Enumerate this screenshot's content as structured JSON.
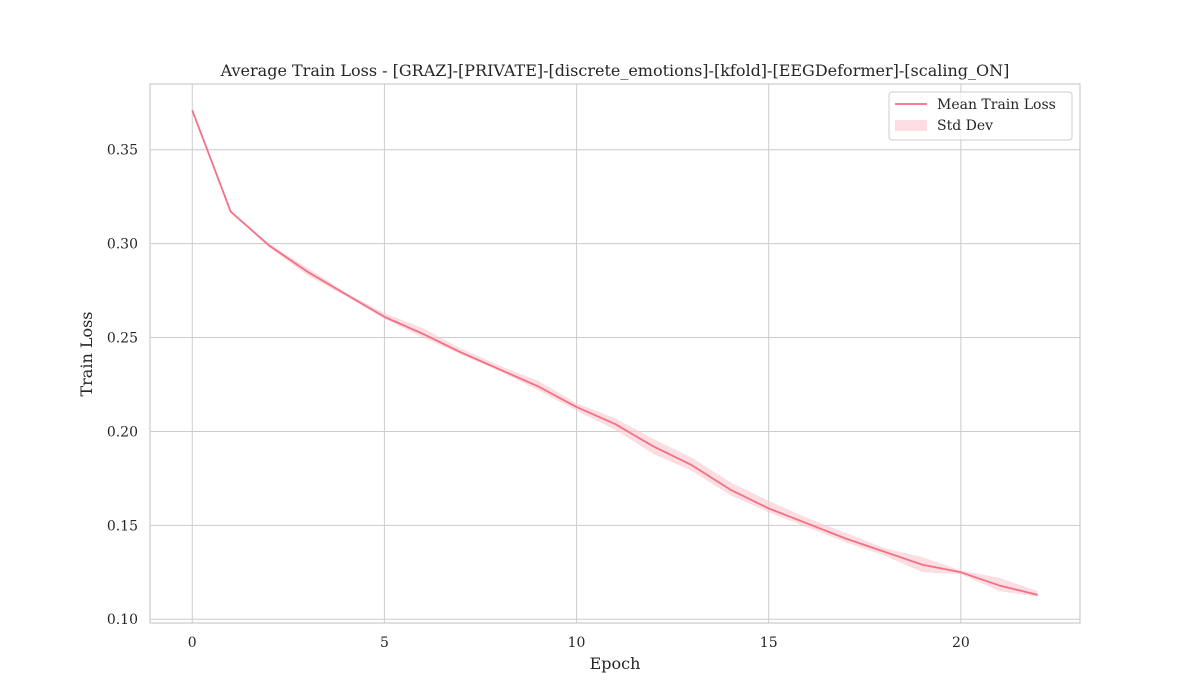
{
  "chart_data": {
    "type": "line",
    "title": "Average Train Loss - [GRAZ]-[PRIVATE]-[discrete_emotions]-[kfold]-[EEGDeformer]-[scaling_ON]",
    "xlabel": "Epoch",
    "ylabel": "Train Loss",
    "xlim": [
      -1.1,
      23.1
    ],
    "ylim": [
      0.098,
      0.385
    ],
    "xticks": [
      0,
      5,
      10,
      15,
      20
    ],
    "yticks": [
      0.1,
      0.15,
      0.2,
      0.25,
      0.3,
      0.35
    ],
    "xtick_labels": [
      "0",
      "5",
      "10",
      "15",
      "20"
    ],
    "ytick_labels": [
      "0.10",
      "0.15",
      "0.20",
      "0.25",
      "0.30",
      "0.35"
    ],
    "grid": true,
    "legend_position": "top-right",
    "line_color": "#f37185",
    "band_color": "#f9c7cf",
    "series": [
      {
        "name": "Mean Train Loss",
        "x": [
          0,
          1,
          2,
          3,
          4,
          5,
          6,
          7,
          8,
          9,
          10,
          11,
          12,
          13,
          14,
          15,
          16,
          17,
          18,
          19,
          20,
          21,
          22
        ],
        "values": [
          0.371,
          0.317,
          0.299,
          0.285,
          0.273,
          0.261,
          0.252,
          0.242,
          0.233,
          0.224,
          0.213,
          0.204,
          0.192,
          0.182,
          0.169,
          0.159,
          0.151,
          0.143,
          0.136,
          0.129,
          0.125,
          0.118,
          0.113
        ]
      },
      {
        "name": "Std Dev",
        "x": [
          0,
          1,
          2,
          3,
          4,
          5,
          6,
          7,
          8,
          9,
          10,
          11,
          12,
          13,
          14,
          15,
          16,
          17,
          18,
          19,
          20,
          21,
          22
        ],
        "lower": [
          0.371,
          0.317,
          0.298,
          0.283,
          0.272,
          0.26,
          0.25,
          0.241,
          0.232,
          0.222,
          0.211,
          0.201,
          0.188,
          0.179,
          0.166,
          0.157,
          0.149,
          0.141,
          0.134,
          0.125,
          0.124,
          0.115,
          0.112
        ],
        "upper": [
          0.371,
          0.317,
          0.3,
          0.287,
          0.274,
          0.263,
          0.255,
          0.244,
          0.235,
          0.227,
          0.215,
          0.207,
          0.196,
          0.186,
          0.173,
          0.163,
          0.154,
          0.146,
          0.138,
          0.133,
          0.126,
          0.122,
          0.115
        ]
      }
    ]
  }
}
